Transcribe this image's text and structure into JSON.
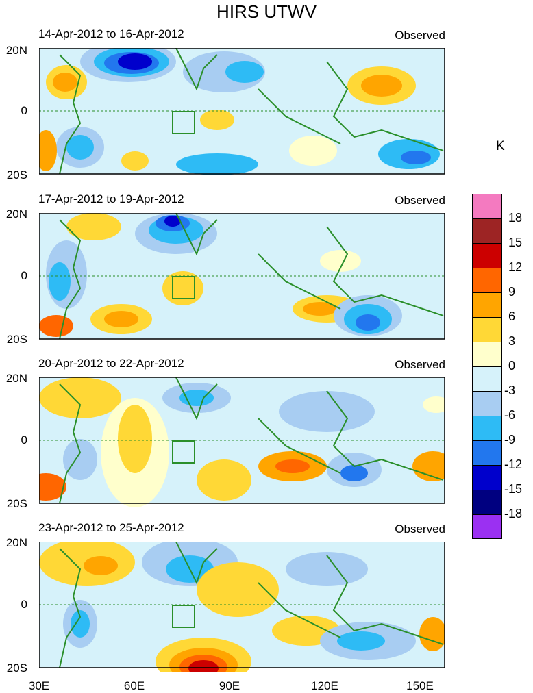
{
  "title": "HIRS UTWV",
  "panels": [
    {
      "dates": "14-Apr-2012 to 16-Apr-2012",
      "label": "Observed"
    },
    {
      "dates": "17-Apr-2012 to 19-Apr-2012",
      "label": "Observed"
    },
    {
      "dates": "20-Apr-2012 to 22-Apr-2012",
      "label": "Observed"
    },
    {
      "dates": "23-Apr-2012 to 25-Apr-2012",
      "label": "Observed"
    }
  ],
  "lat_labels": [
    "20N",
    "0",
    "20S"
  ],
  "lon_labels": [
    "30E",
    "60E",
    "90E",
    "120E",
    "150E"
  ],
  "colorbar": {
    "unit": "K",
    "labels": [
      "18",
      "15",
      "12",
      "9",
      "6",
      "3",
      "0",
      "-3",
      "-6",
      "-9",
      "-12",
      "-15",
      "-18"
    ],
    "colors": [
      "#f47ac0",
      "#9d2424",
      "#cc0000",
      "#ff6600",
      "#ffa500",
      "#ffd836",
      "#ffffcc",
      "#d6f2fa",
      "#a8cdf2",
      "#2ebbf5",
      "#2277ee",
      "#0000cc",
      "#000080",
      "#9b30f2"
    ]
  }
}
